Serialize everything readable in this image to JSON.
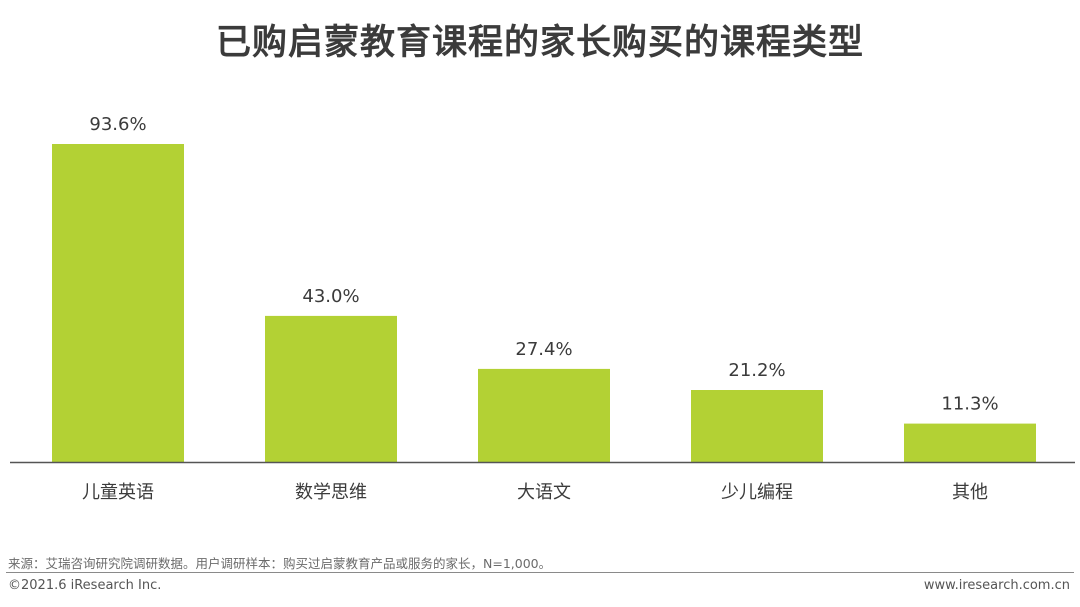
{
  "colors": {
    "bar": "#b3d134",
    "axis": "#555555",
    "text": "#3b3b3b"
  },
  "chart_data": {
    "type": "bar",
    "title": "已购启蒙教育课程的家长购买的课程类型",
    "categories": [
      "儿童英语",
      "数学思维",
      "大语文",
      "少儿编程",
      "其他"
    ],
    "values": [
      93.6,
      43.0,
      27.4,
      21.2,
      11.3
    ],
    "value_labels": [
      "93.6%",
      "43.0%",
      "27.4%",
      "21.2%",
      "11.3%"
    ],
    "unit": "%",
    "ylim": [
      0,
      100
    ],
    "grid": false,
    "legend": "none"
  },
  "footer": {
    "source": "来源：艾瑞咨询研究院调研数据。用户调研样本：购买过启蒙教育产品或服务的家长，N=1,000。",
    "copyright": "©2021.6 iResearch Inc.",
    "website": "www.iresearch.com.cn"
  }
}
